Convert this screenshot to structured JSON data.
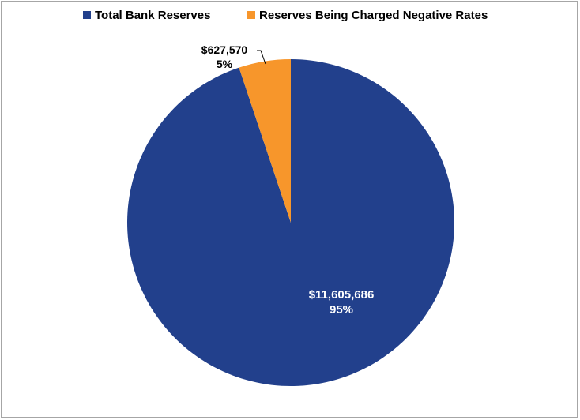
{
  "chart_data": {
    "type": "pie",
    "title": "",
    "legend_position": "top",
    "slices": [
      {
        "label": "Total Bank Reserves",
        "value": 11605686,
        "value_label": "$11,605,686",
        "percent_label": "95%",
        "color": "#22408c"
      },
      {
        "label": "Reserves Being Charged Negative Rates",
        "value": 627570,
        "value_label": "$627,570",
        "percent_label": "5%",
        "color": "#f7962b"
      }
    ]
  }
}
